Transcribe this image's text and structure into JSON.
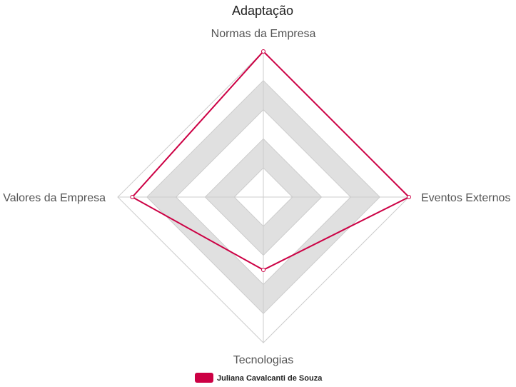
{
  "chart_data": {
    "type": "radar",
    "title": "Adaptação",
    "axes": [
      "Normas da Empresa",
      "Eventos Externos",
      "Tecnologias",
      "Valores da Empresa"
    ],
    "range": [
      0,
      5
    ],
    "rings": 5,
    "series": [
      {
        "name": "Juliana Cavalcanti de Souza",
        "values": [
          5,
          5,
          2.5,
          4.5
        ],
        "color": "#cc0044"
      }
    ],
    "legend_position": "bottom",
    "band_color": "#e0e0e0",
    "grid_color": "#cccccc"
  }
}
